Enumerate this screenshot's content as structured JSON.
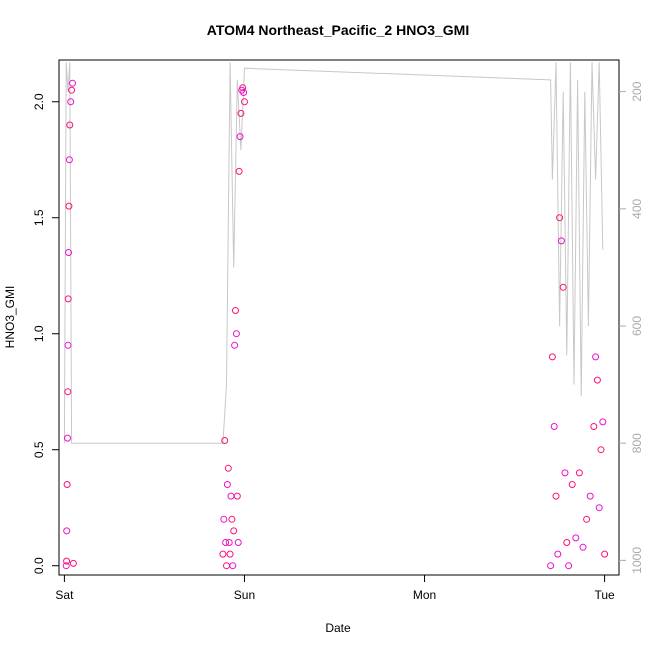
{
  "chart_data": {
    "type": "scatter",
    "title": "ATOM4 Northeast_Pacific_2 HNO3_GMI",
    "xlabel": "Date",
    "ylabel": "HNO3_GMI",
    "xlim": [
      -0.03,
      3.08
    ],
    "ylim": [
      -0.04,
      2.18
    ],
    "y2lim": [
      1025,
      146
    ],
    "x_ticks": [
      {
        "value": 0,
        "label": "Sat"
      },
      {
        "value": 1,
        "label": "Sun"
      },
      {
        "value": 2,
        "label": "Mon"
      },
      {
        "value": 3,
        "label": "Tue"
      }
    ],
    "y_ticks": [
      0.0,
      0.5,
      1.0,
      1.5,
      2.0
    ],
    "y_tick_labels": [
      "0.0",
      "0.5",
      "1.0",
      "1.5",
      "2.0"
    ],
    "y2_ticks": [
      200,
      400,
      600,
      800,
      1000
    ],
    "y2_tick_labels": [
      "200",
      "400",
      "600",
      "800",
      "1000"
    ],
    "grid": false,
    "point_colors": [
      "#ee10cc",
      "#ff1177"
    ],
    "pressure_color": "#c8c8c8",
    "series": [
      {
        "x": [
          0.01,
          0.012,
          0.013,
          0.015,
          0.017,
          0.019,
          0.02,
          0.021,
          0.023,
          0.025,
          0.028,
          0.03,
          0.035,
          0.04,
          0.045,
          0.05
        ],
        "values": [
          0.0,
          0.02,
          0.15,
          0.35,
          0.55,
          0.75,
          0.95,
          1.15,
          1.35,
          1.55,
          1.75,
          1.9,
          2.0,
          2.05,
          2.08,
          0.01
        ]
      },
      {
        "x": [
          0.88,
          0.885,
          0.89,
          0.895,
          0.9,
          0.905,
          0.91,
          0.915,
          0.92,
          0.925,
          0.93,
          0.935,
          0.94,
          0.945,
          0.95,
          0.955,
          0.96,
          0.965,
          0.97,
          0.975,
          0.98,
          0.985,
          0.99,
          0.995,
          1.0
        ],
        "values": [
          0.05,
          0.2,
          0.54,
          0.1,
          0.0,
          0.35,
          0.42,
          0.1,
          0.05,
          0.3,
          0.2,
          0.0,
          0.15,
          0.95,
          1.1,
          1.0,
          0.3,
          0.1,
          1.7,
          1.85,
          1.95,
          2.05,
          2.06,
          2.04,
          2.0
        ]
      },
      {
        "x": [
          2.7,
          2.71,
          2.72,
          2.73,
          2.74,
          2.75,
          2.76,
          2.77,
          2.78,
          2.79,
          2.8,
          2.82,
          2.84,
          2.86,
          2.88,
          2.9,
          2.92,
          2.94,
          2.95,
          2.96,
          2.97,
          2.98,
          2.99,
          3.0
        ],
        "values": [
          0.0,
          0.9,
          0.6,
          0.3,
          0.05,
          1.5,
          1.4,
          1.2,
          0.4,
          0.1,
          0.0,
          0.35,
          0.12,
          0.4,
          0.08,
          0.2,
          0.3,
          0.6,
          0.9,
          0.8,
          0.25,
          0.5,
          0.62,
          0.05
        ]
      }
    ],
    "pressure": {
      "x": [
        0.0,
        0.01,
        0.02,
        0.03,
        0.04,
        0.05,
        0.88,
        0.9,
        0.92,
        0.94,
        0.96,
        0.98,
        1.0,
        2.7,
        2.71,
        2.73,
        2.75,
        2.77,
        2.79,
        2.81,
        2.83,
        2.85,
        2.87,
        2.89,
        2.91,
        2.93,
        2.95,
        2.97,
        2.99
      ],
      "values": [
        800,
        150,
        200,
        150,
        800,
        800,
        800,
        700,
        150,
        500,
        180,
        300,
        160,
        180,
        350,
        150,
        600,
        200,
        650,
        150,
        700,
        180,
        720,
        200,
        600,
        150,
        350,
        150,
        470
      ]
    }
  }
}
